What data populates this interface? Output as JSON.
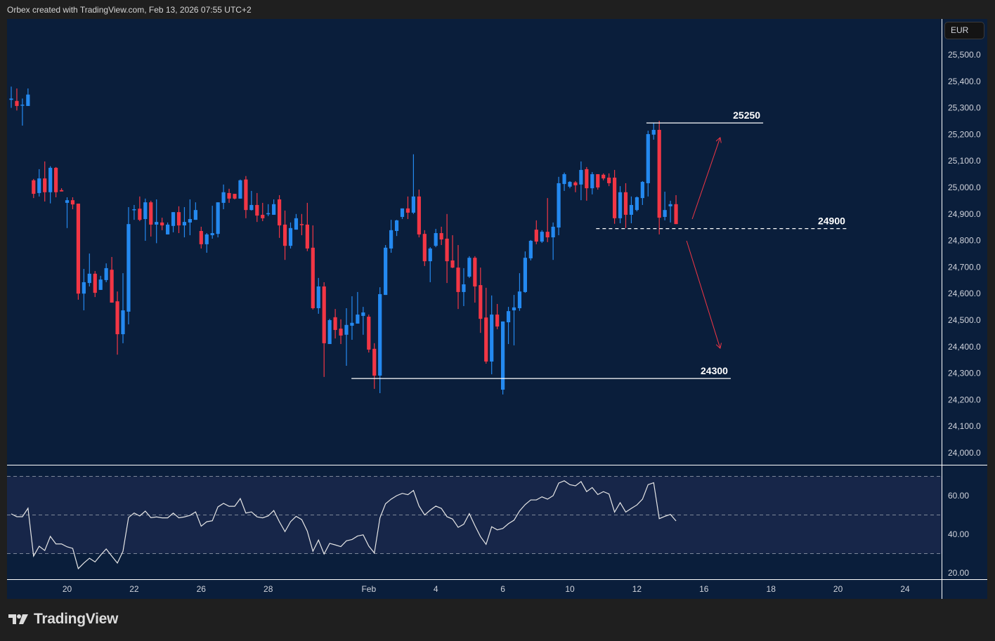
{
  "header": {
    "caption": "Orbex created with TradingView.com, Feb 13, 2026 07:55 UTC+2"
  },
  "price_axis": {
    "currency_button": "EUR"
  },
  "footer": {
    "brand": "TradingView",
    "logo_icon": "tradingview-logo-icon"
  },
  "colors": {
    "background": "#0a1e3b",
    "up": "#2489f0",
    "down": "#f23645",
    "rsi_line": "#e6e6e6",
    "rsi_band": "#172649",
    "annotation_arrow": "#f23645",
    "level_line": "#ffffff"
  },
  "chart_data": [
    {
      "type": "candlestick",
      "ylim": [
        23950,
        25600
      ],
      "y_ticks": [
        "25,500.0",
        "25,400.0",
        "25,300.0",
        "25,200.0",
        "25,100.0",
        "25,000.0",
        "24,900.0",
        "24,800.0",
        "24,700.0",
        "24,600.0",
        "24,500.0",
        "24,400.0",
        "24,300.0",
        "24,200.0",
        "24,100.0",
        "24,000.0"
      ],
      "y_tick_values": [
        25500,
        25400,
        25300,
        25200,
        25100,
        25000,
        24900,
        24800,
        24700,
        24600,
        24500,
        24400,
        24300,
        24200,
        24100,
        24000
      ],
      "x_ticks": [
        {
          "label": "20",
          "bar": 10
        },
        {
          "label": "22",
          "bar": 22
        },
        {
          "label": "26",
          "bar": 34
        },
        {
          "label": "28",
          "bar": 46
        },
        {
          "label": "Feb",
          "bar": 64
        },
        {
          "label": "4",
          "bar": 76
        },
        {
          "label": "6",
          "bar": 88
        },
        {
          "label": "10",
          "bar": 100
        },
        {
          "label": "12",
          "bar": 112
        },
        {
          "label": "16",
          "bar": 124
        },
        {
          "label": "18",
          "bar": 136
        },
        {
          "label": "20",
          "bar": 148
        },
        {
          "label": "24",
          "bar": 160
        }
      ],
      "candles_ohlc": [
        [
          25330,
          25380,
          25300,
          25335
        ],
        [
          25326,
          25373,
          25290,
          25307
        ],
        [
          25310,
          25335,
          25233,
          25312
        ],
        [
          25307,
          25373,
          25307,
          25350
        ],
        [
          25027,
          25032,
          24960,
          24976
        ],
        [
          24979,
          25069,
          24966,
          25034
        ],
        [
          25034,
          25098,
          24947,
          24982
        ],
        [
          24982,
          25080,
          24940,
          25074
        ],
        [
          25074,
          25077,
          24963,
          24982
        ],
        [
          24990,
          24997,
          24985,
          24985
        ],
        [
          24942,
          24963,
          24847,
          24952
        ],
        [
          24952,
          24963,
          24918,
          24936
        ],
        [
          24939,
          24939,
          24577,
          24600
        ],
        [
          24600,
          24693,
          24537,
          24643
        ],
        [
          24640,
          24751,
          24627,
          24675
        ],
        [
          24675,
          24685,
          24587,
          24603
        ],
        [
          24614,
          24667,
          24614,
          24653
        ],
        [
          24651,
          24714,
          24643,
          24696
        ],
        [
          24690,
          24738,
          24566,
          24566
        ],
        [
          24571,
          24608,
          24370,
          24447
        ],
        [
          24447,
          24677,
          24413,
          24537
        ],
        [
          24532,
          24926,
          24484,
          24862
        ],
        [
          24915,
          24934,
          24878,
          24918
        ],
        [
          24920,
          24966,
          24873,
          24878
        ],
        [
          24881,
          24958,
          24799,
          24944
        ],
        [
          24944,
          24950,
          24815,
          24860
        ],
        [
          24860,
          24955,
          24790,
          24870
        ],
        [
          24868,
          24886,
          24839,
          24857
        ],
        [
          24823,
          24868,
          24823,
          24860
        ],
        [
          24855,
          24907,
          24831,
          24907
        ],
        [
          24907,
          24929,
          24828,
          24857
        ],
        [
          24857,
          24926,
          24812,
          24870
        ],
        [
          24868,
          24955,
          24820,
          24881
        ],
        [
          24878,
          24944,
          24878,
          24915
        ],
        [
          24836,
          24852,
          24770,
          24786
        ],
        [
          24786,
          24828,
          24754,
          24823
        ],
        [
          24820,
          24931,
          24807,
          24828
        ],
        [
          24825,
          24944,
          24812,
          24944
        ],
        [
          24942,
          25011,
          24918,
          24982
        ],
        [
          24979,
          24995,
          24942,
          24958
        ],
        [
          24976,
          24976,
          24955,
          24958
        ],
        [
          24958,
          25030,
          24958,
          25027
        ],
        [
          25030,
          25043,
          24884,
          24915
        ],
        [
          24915,
          24987,
          24913,
          24934
        ],
        [
          24934,
          24979,
          24870,
          24894
        ],
        [
          24897,
          24942,
          24873,
          24884
        ],
        [
          24900,
          24937,
          24892,
          24903
        ],
        [
          24897,
          24955,
          24897,
          24937
        ],
        [
          24955,
          24971,
          24810,
          24857
        ],
        [
          24860,
          24913,
          24727,
          24780
        ],
        [
          24780,
          24868,
          24770,
          24847
        ],
        [
          24841,
          24900,
          24841,
          24884
        ],
        [
          24862,
          24900,
          24820,
          24858
        ],
        [
          24860,
          24942,
          24760,
          24770
        ],
        [
          24773,
          24857,
          24540,
          24545
        ],
        [
          24545,
          24659,
          24524,
          24627
        ],
        [
          24627,
          24643,
          24286,
          24413
        ],
        [
          24410,
          24505,
          24410,
          24500
        ],
        [
          24511,
          24542,
          24431,
          24463
        ],
        [
          24468,
          24503,
          24410,
          24442
        ],
        [
          24445,
          24545,
          24328,
          24482
        ],
        [
          24479,
          24590,
          24426,
          24490
        ],
        [
          24487,
          24606,
          24487,
          24521
        ],
        [
          24516,
          24550,
          24445,
          24529
        ],
        [
          24513,
          24521,
          24378,
          24389
        ],
        [
          24392,
          24413,
          24241,
          24291
        ],
        [
          24291,
          24624,
          24225,
          24598
        ],
        [
          24595,
          24783,
          24595,
          24773
        ],
        [
          24770,
          24878,
          24754,
          24839
        ],
        [
          24836,
          24878,
          24817,
          24876
        ],
        [
          24889,
          24921,
          24881,
          24921
        ],
        [
          24921,
          24966,
          24881,
          24905
        ],
        [
          24905,
          25125,
          24900,
          24966
        ],
        [
          24966,
          24992,
          24812,
          24823
        ],
        [
          24825,
          24839,
          24704,
          24722
        ],
        [
          24722,
          24775,
          24643,
          24770
        ],
        [
          24780,
          24844,
          24775,
          24828
        ],
        [
          24828,
          24852,
          24783,
          24804
        ],
        [
          24807,
          24900,
          24640,
          24722
        ],
        [
          24725,
          24820,
          24696,
          24698
        ],
        [
          24698,
          24783,
          24542,
          24606
        ],
        [
          24606,
          24696,
          24553,
          24635
        ],
        [
          24664,
          24741,
          24659,
          24735
        ],
        [
          24735,
          24741,
          24566,
          24627
        ],
        [
          24632,
          24698,
          24452,
          24505
        ],
        [
          24510,
          24622,
          24336,
          24344
        ],
        [
          24344,
          24593,
          24296,
          24521
        ],
        [
          24521,
          24561,
          24466,
          24476
        ],
        [
          24238,
          24495,
          24220,
          24495
        ],
        [
          24492,
          24550,
          24410,
          24534
        ],
        [
          24537,
          24595,
          24405,
          24548
        ],
        [
          24545,
          24677,
          24535,
          24608
        ],
        [
          24606,
          24759,
          24603,
          24735
        ],
        [
          24733,
          24802,
          24725,
          24799
        ],
        [
          24841,
          24876,
          24786,
          24796
        ],
        [
          24796,
          24839,
          24791,
          24833
        ],
        [
          24833,
          24960,
          24794,
          24812
        ],
        [
          24812,
          24868,
          24727,
          24852
        ],
        [
          24849,
          25040,
          24820,
          25016
        ],
        [
          25013,
          25056,
          24987,
          25050
        ],
        [
          25003,
          25024,
          24997,
          25021
        ],
        [
          25019,
          25024,
          24982,
          25008
        ],
        [
          25011,
          25098,
          24952,
          25066
        ],
        [
          25069,
          25077,
          24950,
          24997
        ],
        [
          24997,
          25058,
          24974,
          25050
        ],
        [
          25050,
          25050,
          24992,
          25000
        ],
        [
          25048,
          25053,
          25027,
          25034
        ],
        [
          25037,
          25053,
          25005,
          25016
        ],
        [
          25037,
          25066,
          24863,
          24884
        ],
        [
          24884,
          25005,
          24865,
          24982
        ],
        [
          24982,
          25016,
          24847,
          24897
        ],
        [
          24897,
          24966,
          24865,
          24934
        ],
        [
          24915,
          24966,
          24910,
          24963
        ],
        [
          24960,
          25024,
          24934,
          25021
        ],
        [
          25016,
          25214,
          24966,
          25201
        ],
        [
          25199,
          25243,
          25180,
          25217
        ],
        [
          25217,
          25251,
          24823,
          24886
        ],
        [
          24889,
          24984,
          24876,
          24915
        ],
        [
          24929,
          24950,
          24868,
          24937
        ],
        [
          24937,
          24971,
          24862,
          24862
        ]
      ],
      "annotations": {
        "levels": [
          {
            "label": "25250",
            "price": 25243,
            "from_bar": 113.7,
            "to_bar": 134.6,
            "style": "solid"
          },
          {
            "label": "24900",
            "price": 24845,
            "from_bar": 104.7,
            "to_bar": 149.8,
            "style": "dashed"
          },
          {
            "label": "24300",
            "price": 24280,
            "from_bar": 60.9,
            "to_bar": 128.8,
            "style": "solid"
          }
        ],
        "arrows": [
          {
            "direction": "up",
            "from": [
              121.9,
              24881
            ],
            "to": [
              126.9,
              25188
            ]
          },
          {
            "direction": "down",
            "from": [
              120.9,
              24799
            ],
            "to": [
              126.9,
              24394
            ]
          }
        ]
      }
    },
    {
      "type": "line",
      "indicator": "RSI",
      "ylim": [
        14,
        75
      ],
      "bands": [
        70,
        50,
        30
      ],
      "y_ticks": [
        "60.00",
        "40.00",
        "20.00"
      ],
      "y_tick_values": [
        60,
        40,
        20
      ],
      "values": [
        50.6,
        49.1,
        49.1,
        53.5,
        28.7,
        33.8,
        31.6,
        38.9,
        35,
        35,
        33.5,
        32.7,
        22.2,
        25.1,
        27.6,
        25.7,
        29.2,
        32.4,
        28.7,
        25.1,
        31.2,
        48.7,
        51,
        49.5,
        52,
        48.6,
        49,
        48.5,
        48.5,
        51,
        48.5,
        49,
        49.8,
        51.6,
        44.2,
        46.5,
        47,
        54.2,
        56,
        54.5,
        54.5,
        58.5,
        51,
        51.6,
        49,
        48.5,
        49.5,
        52.3,
        46.5,
        41.4,
        46.5,
        49.3,
        47.6,
        41.6,
        31.2,
        37,
        29.8,
        35.3,
        34.5,
        33.6,
        36.6,
        37.3,
        39.1,
        39.7,
        33.9,
        30.3,
        48.5,
        55.8,
        58.2,
        60,
        61.2,
        60.5,
        62.7,
        54.6,
        50,
        52.5,
        54.6,
        53.4,
        49.1,
        47.9,
        43.6,
        45.2,
        50.7,
        44.5,
        38.8,
        34.8,
        43.9,
        42.3,
        43,
        45.5,
        47.3,
        52.1,
        55.4,
        57.8,
        57.8,
        59.4,
        58.2,
        60,
        66.5,
        67.7,
        65.7,
        65.1,
        67.3,
        62.1,
        64.2,
        60.6,
        62.1,
        60.9,
        51.5,
        56.4,
        51.5,
        53.4,
        55.2,
        58.2,
        65.7,
        66.7,
        48.1,
        49.3,
        50.3,
        46.9
      ]
    }
  ]
}
